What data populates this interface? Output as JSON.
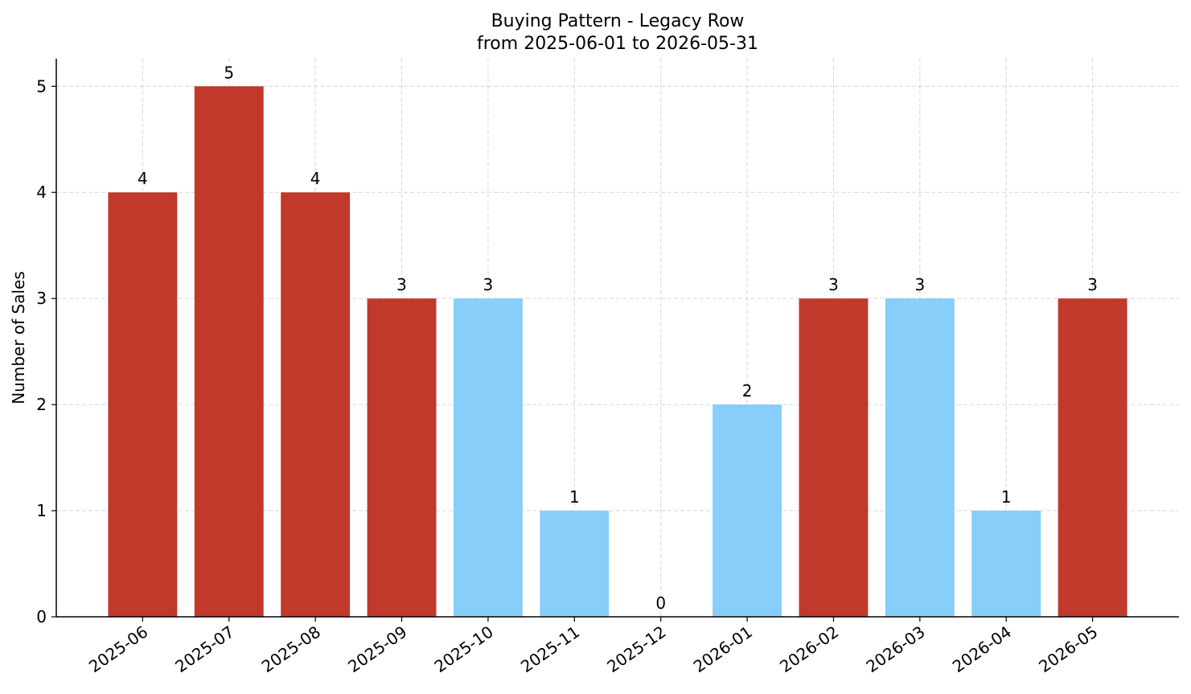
{
  "chart_data": {
    "type": "bar",
    "title": "Buying Pattern - Legacy Row",
    "subtitle": "from 2025-06-01 to 2026-05-31",
    "y_label": "Number of Sales",
    "categories": [
      "2025-06",
      "2025-07",
      "2025-08",
      "2025-09",
      "2025-10",
      "2025-11",
      "2025-12",
      "2026-01",
      "2026-02",
      "2026-03",
      "2026-04",
      "2026-05"
    ],
    "values": [
      4,
      5,
      4,
      3,
      3,
      1,
      0,
      2,
      3,
      3,
      1,
      3
    ],
    "colors": [
      "#c0392b",
      "#c0392b",
      "#c0392b",
      "#c0392b",
      "#87cefa",
      "#87cefa",
      "#87cefa",
      "#87cefa",
      "#c0392b",
      "#87cefa",
      "#87cefa",
      "#c0392b"
    ],
    "ylim": [
      0,
      5.26
    ],
    "yticks": [
      0,
      1,
      2,
      3,
      4,
      5
    ],
    "grid": true
  }
}
